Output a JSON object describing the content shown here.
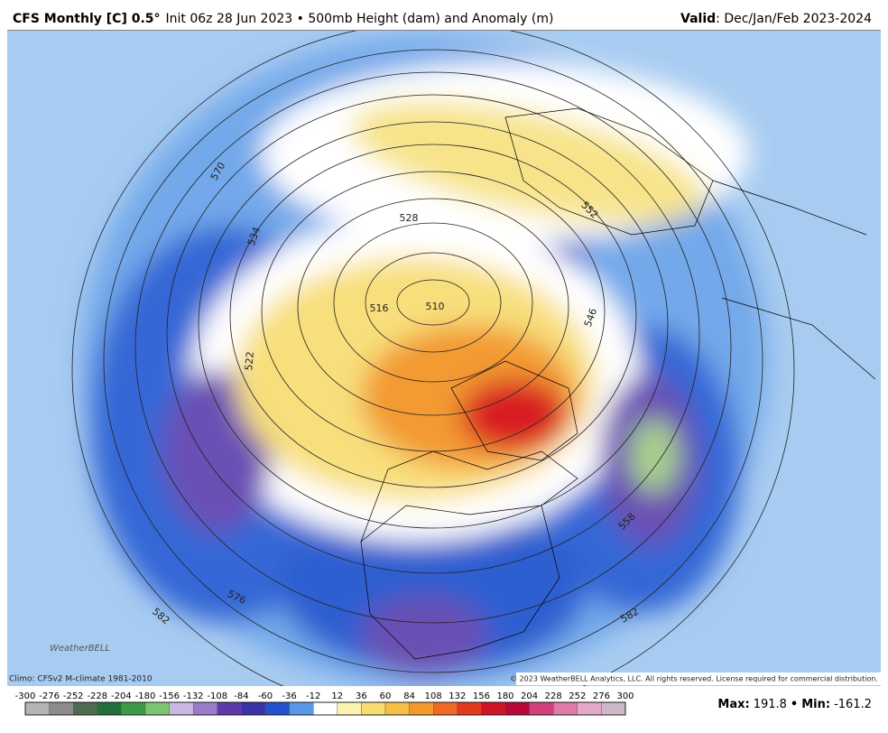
{
  "header": {
    "title_bold": "CFS Monthly [C] 0.5°",
    "title_rest": "Init 06z 28 Jun 2023 • 500mb Height (dam) and Anomaly (m)",
    "valid_label": "Valid",
    "valid_rest": ": Dec/Jan/Feb 2023-2024"
  },
  "map": {
    "contour_labels": [
      "570",
      "534",
      "528",
      "522",
      "552",
      "516",
      "510",
      "546",
      "558",
      "576",
      "582",
      "582"
    ],
    "logo": "WeatherBELL"
  },
  "footer": {
    "climo": "Climo: CFSv2 M-climate 1981-2010",
    "copyright": "© 2023 WeatherBELL Analytics, LLC. All rights reserved. License required for commercial distribution."
  },
  "colorbar": {
    "ticks": [
      -300,
      -276,
      -252,
      -228,
      -204,
      -180,
      -156,
      -132,
      -108,
      -84,
      -60,
      -36,
      -12,
      12,
      36,
      60,
      84,
      108,
      132,
      156,
      180,
      204,
      228,
      252,
      276,
      300
    ],
    "colors": [
      "#b4b4b4",
      "#8c8c8c",
      "#4f6b52",
      "#23703a",
      "#3f9a47",
      "#7cc472",
      "#c9b8e0",
      "#9a7ccb",
      "#5d3aa8",
      "#3a33a6",
      "#2452cc",
      "#5a97e6",
      "#ffffff",
      "#fbf1b0",
      "#f7dc72",
      "#f6bf45",
      "#f39a2f",
      "#ee6a24",
      "#e03a1f",
      "#cf1426",
      "#b8083a",
      "#d0407a",
      "#e07aa6",
      "#e3a9c6",
      "#cdb8c8"
    ]
  },
  "stats": {
    "max_label": "Max:",
    "max": 191.8,
    "separator": "•",
    "min_label": "Min:",
    "min": -161.2
  }
}
